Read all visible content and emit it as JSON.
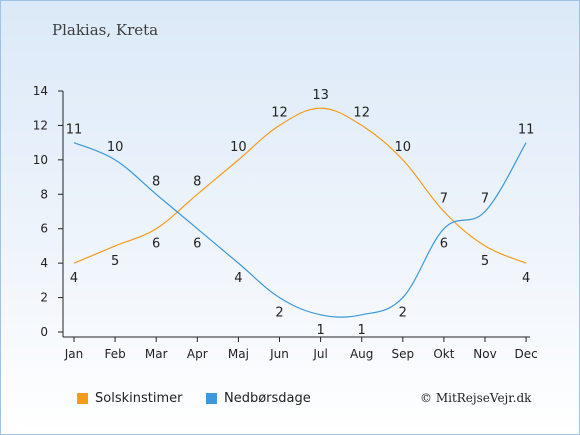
{
  "location_title": "Plakias, Kreta",
  "credit": "© MitRejseVejr.dk",
  "chart_data": {
    "type": "line",
    "categories": [
      "Jan",
      "Feb",
      "Mar",
      "Apr",
      "Maj",
      "Jun",
      "Jul",
      "Aug",
      "Sep",
      "Okt",
      "Nov",
      "Dec"
    ],
    "ylim": [
      0,
      14
    ],
    "yticks": [
      0,
      2,
      4,
      6,
      8,
      10,
      12,
      14
    ],
    "grid": false,
    "legend_position": "bottom",
    "series": [
      {
        "name": "Solskinstimer",
        "color": "#f59b1b",
        "values": [
          4,
          5,
          6,
          8,
          10,
          12,
          13,
          12,
          10,
          7,
          5,
          4
        ]
      },
      {
        "name": "Nedbørsdage",
        "color": "#3b98dc",
        "values": [
          11,
          10,
          8,
          6,
          4,
          2,
          1,
          1,
          2,
          6,
          7,
          11
        ]
      }
    ]
  }
}
